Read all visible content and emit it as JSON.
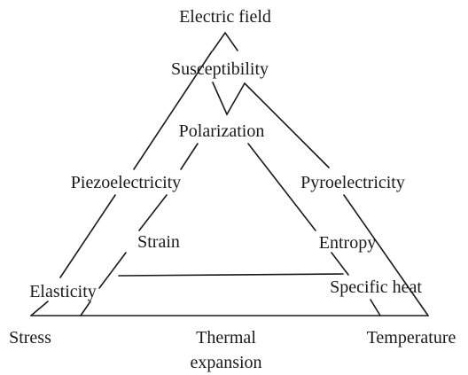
{
  "labels": {
    "electric_field": "Electric field",
    "susceptibility": "Susceptibility",
    "polarization": "Polarization",
    "piezoelectricity": "Piezoelectricity",
    "pyroelectricity": "Pyroelectricity",
    "strain": "Strain",
    "entropy": "Entropy",
    "elasticity": "Elasticity",
    "specific_heat": "Specific heat",
    "stress": "Stress",
    "thermal_expansion_line1": "Thermal",
    "thermal_expansion_line2": "expansion",
    "temperature": "Temperature"
  }
}
